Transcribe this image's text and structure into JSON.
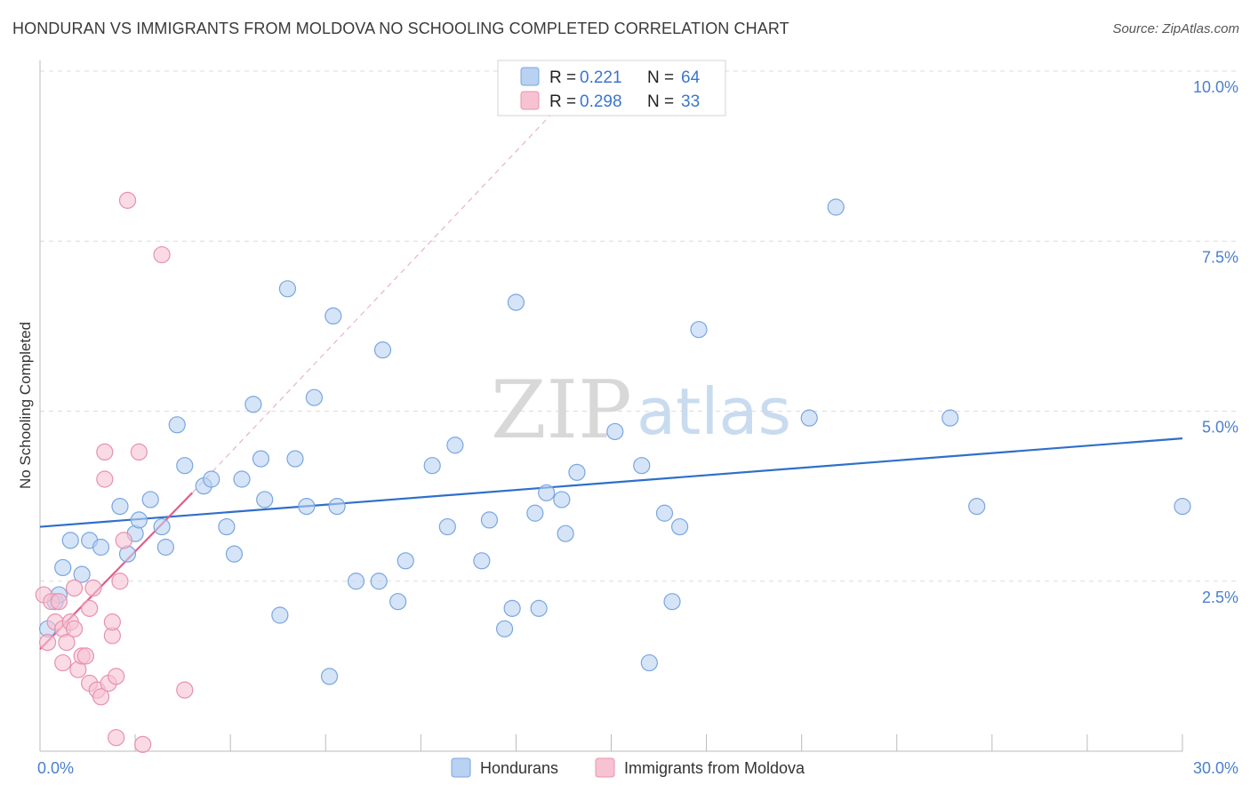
{
  "header": {
    "title": "HONDURAN VS IMMIGRANTS FROM MOLDOVA NO SCHOOLING COMPLETED CORRELATION CHART",
    "source": "Source: ZipAtlas.com"
  },
  "watermark": {
    "zip": "ZIP",
    "atlas": "atlas"
  },
  "legend": {
    "rows": [
      {
        "r_label": "R =",
        "r_value": "0.221",
        "n_label": "N =",
        "n_value": "64"
      },
      {
        "r_label": "R =",
        "r_value": "0.298",
        "n_label": "N =",
        "n_value": "33"
      }
    ]
  },
  "bottom_legend": {
    "items": [
      {
        "label": "Hondurans"
      },
      {
        "label": "Immigrants from Moldova"
      }
    ]
  },
  "colors": {
    "blue_fill": "#b9d2f2",
    "blue_stroke": "#7aa6e0",
    "blue_line": "#2f6fca",
    "pink_fill": "#f7c3d3",
    "pink_stroke": "#e991ad",
    "pink_line": "#e0608d",
    "grid": "#dcdcdc",
    "tick_text": "#4a7fcf"
  },
  "chart_data": {
    "type": "scatter",
    "title": "HONDURAN VS IMMIGRANTS FROM MOLDOVA NO SCHOOLING COMPLETED CORRELATION CHART",
    "xlabel": "",
    "ylabel": "No Schooling Completed",
    "xlim": [
      0,
      30
    ],
    "ylim": [
      0,
      10
    ],
    "x_tick_labels": [
      {
        "value": 0,
        "label": "0.0%"
      },
      {
        "value": 30,
        "label": "30.0%"
      }
    ],
    "y_tick_labels": [
      {
        "value": 2.5,
        "label": "2.5%"
      },
      {
        "value": 5.0,
        "label": "5.0%"
      },
      {
        "value": 7.5,
        "label": "7.5%"
      },
      {
        "value": 10.0,
        "label": "10.0%"
      }
    ],
    "series": [
      {
        "name": "Hondurans",
        "color": "#7aa6e0",
        "r": 0.221,
        "n": 64,
        "trend": {
          "x0": 0,
          "y0": 3.3,
          "x1": 30,
          "y1": 4.6
        },
        "points": [
          [
            0.2,
            1.8
          ],
          [
            0.4,
            2.2
          ],
          [
            0.6,
            2.7
          ],
          [
            0.8,
            3.1
          ],
          [
            1.1,
            2.6
          ],
          [
            1.3,
            3.1
          ],
          [
            1.6,
            3.0
          ],
          [
            2.1,
            3.6
          ],
          [
            2.5,
            3.2
          ],
          [
            2.3,
            2.9
          ],
          [
            2.6,
            3.4
          ],
          [
            2.9,
            3.7
          ],
          [
            3.2,
            3.3
          ],
          [
            3.3,
            3.0
          ],
          [
            3.6,
            4.8
          ],
          [
            3.8,
            4.2
          ],
          [
            4.3,
            3.9
          ],
          [
            4.5,
            4.0
          ],
          [
            4.9,
            3.3
          ],
          [
            5.1,
            2.9
          ],
          [
            5.3,
            4.0
          ],
          [
            5.6,
            5.1
          ],
          [
            5.8,
            4.3
          ],
          [
            5.9,
            3.7
          ],
          [
            6.3,
            2.0
          ],
          [
            6.5,
            6.8
          ],
          [
            6.7,
            4.3
          ],
          [
            7.0,
            3.6
          ],
          [
            7.2,
            5.2
          ],
          [
            7.6,
            1.1
          ],
          [
            7.7,
            6.4
          ],
          [
            7.8,
            3.6
          ],
          [
            8.3,
            2.5
          ],
          [
            8.9,
            2.5
          ],
          [
            9.0,
            5.9
          ],
          [
            9.4,
            2.2
          ],
          [
            9.6,
            2.8
          ],
          [
            10.3,
            4.2
          ],
          [
            10.7,
            3.3
          ],
          [
            10.9,
            4.5
          ],
          [
            11.6,
            2.8
          ],
          [
            11.8,
            3.4
          ],
          [
            12.2,
            1.8
          ],
          [
            12.4,
            2.1
          ],
          [
            12.5,
            6.6
          ],
          [
            13.0,
            3.5
          ],
          [
            13.1,
            2.1
          ],
          [
            13.3,
            3.8
          ],
          [
            13.7,
            3.7
          ],
          [
            13.8,
            3.2
          ],
          [
            14.1,
            4.1
          ],
          [
            15.1,
            4.7
          ],
          [
            15.8,
            4.2
          ],
          [
            16.0,
            1.3
          ],
          [
            16.4,
            3.5
          ],
          [
            16.6,
            2.2
          ],
          [
            16.8,
            3.3
          ],
          [
            17.3,
            6.2
          ],
          [
            20.2,
            4.9
          ],
          [
            20.9,
            8.0
          ],
          [
            23.9,
            4.9
          ],
          [
            24.6,
            3.6
          ],
          [
            30.0,
            3.6
          ],
          [
            0.5,
            2.3
          ]
        ]
      },
      {
        "name": "Immigrants from Moldova",
        "color": "#e991ad",
        "r": 0.298,
        "n": 33,
        "trend": {
          "x0": 0,
          "y0": 1.5,
          "x1": 4.0,
          "y1": 3.8
        },
        "trend_extension": {
          "x0": 4.0,
          "y0": 3.8,
          "x1": 14.5,
          "y1": 10.0
        },
        "points": [
          [
            0.1,
            2.3
          ],
          [
            0.2,
            1.6
          ],
          [
            0.3,
            2.2
          ],
          [
            0.4,
            1.9
          ],
          [
            0.5,
            2.2
          ],
          [
            0.6,
            1.8
          ],
          [
            0.6,
            1.3
          ],
          [
            0.7,
            1.6
          ],
          [
            0.8,
            1.9
          ],
          [
            0.9,
            2.4
          ],
          [
            0.9,
            1.8
          ],
          [
            1.0,
            1.2
          ],
          [
            1.1,
            1.4
          ],
          [
            1.2,
            1.4
          ],
          [
            1.3,
            1.0
          ],
          [
            1.3,
            2.1
          ],
          [
            1.4,
            2.4
          ],
          [
            1.5,
            0.9
          ],
          [
            1.6,
            0.8
          ],
          [
            1.7,
            4.4
          ],
          [
            1.7,
            4.0
          ],
          [
            1.8,
            1.0
          ],
          [
            1.9,
            1.7
          ],
          [
            1.9,
            1.9
          ],
          [
            2.0,
            1.1
          ],
          [
            2.1,
            2.5
          ],
          [
            2.0,
            0.2
          ],
          [
            2.2,
            3.1
          ],
          [
            2.3,
            8.1
          ],
          [
            2.6,
            4.4
          ],
          [
            2.7,
            0.1
          ],
          [
            3.2,
            7.3
          ],
          [
            3.8,
            0.9
          ]
        ]
      }
    ]
  }
}
